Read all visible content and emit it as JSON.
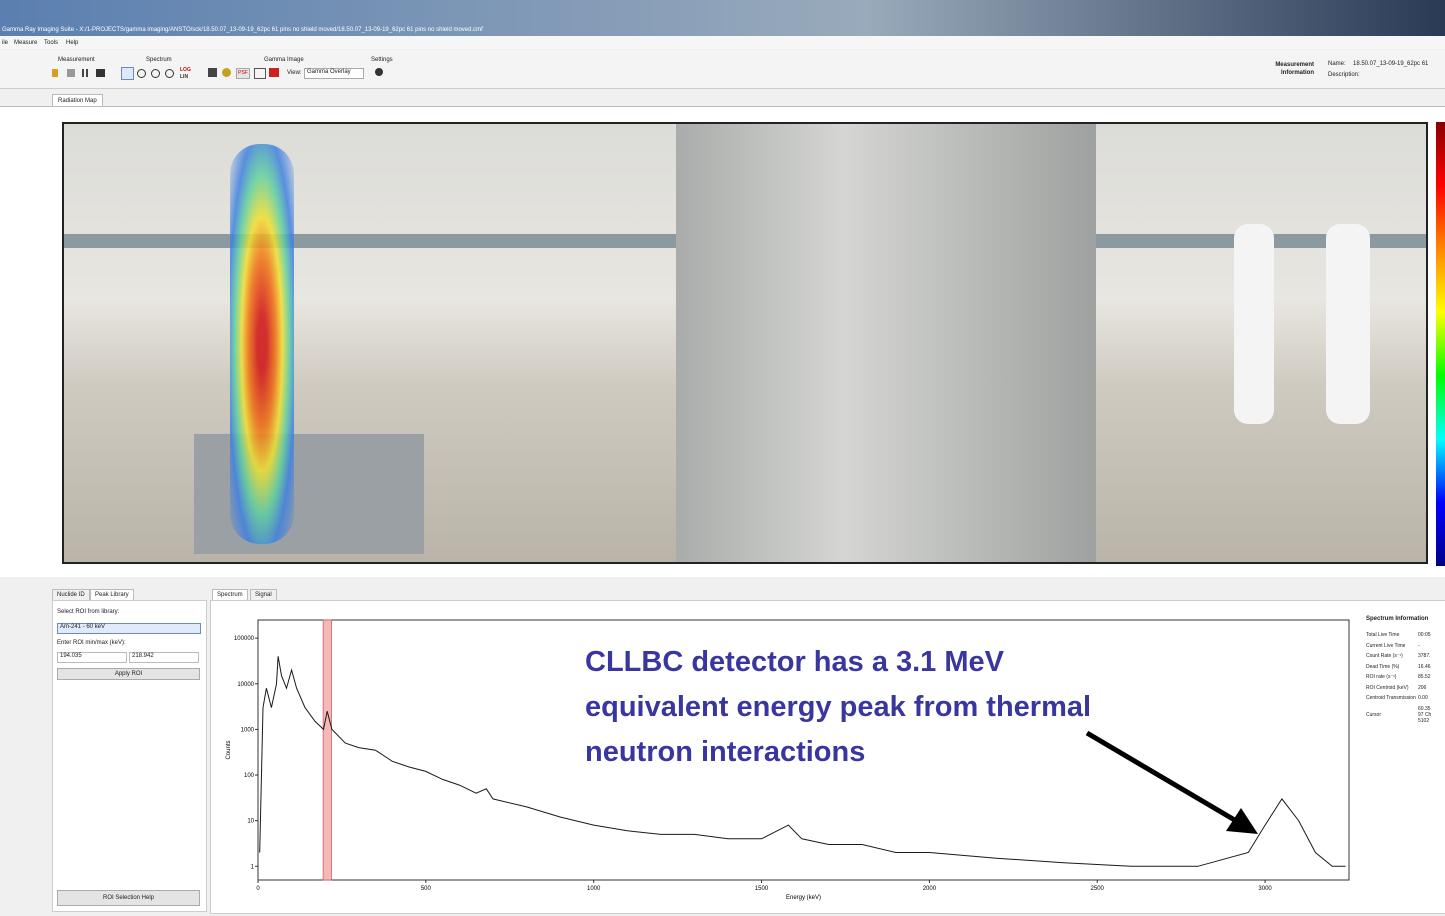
{
  "window": {
    "title": "Gamma Ray Imaging Suite - X:/1-PROJECTS/gamma imaging/ANSTO/sck/18.50.07_13-09-19_62pc 61 pins no shield moved/18.50.07_13-09-19_62pc 61 pins no shield moved.cmf"
  },
  "menu": [
    "ile",
    "Measure",
    "Tools",
    "Help"
  ],
  "toolbar": {
    "groups": [
      "Measurement",
      "Spectrum",
      "Gamma Image",
      "Settings"
    ],
    "log": "LOG",
    "lin": "LIN",
    "psf": "PSF",
    "view_label": "View:",
    "view_value": "Gamma Overlay"
  },
  "measurement_info": {
    "title": "Measurement Information",
    "name_label": "Name:",
    "name_value": "18.50.07_13-09-19_62pc 61",
    "description_label": "Description:"
  },
  "main_tab": "Radiation Map",
  "left_panel": {
    "tabs": [
      "Nuclide ID",
      "Peak Library"
    ],
    "select_label": "Select ROI from library:",
    "select_value": "Am-241 - 60 keV",
    "roi_label": "Enter ROI min/max (keV):",
    "roi_min": 194.035,
    "roi_max": 218.942,
    "apply": "Apply ROI",
    "help": "ROI Selection Help"
  },
  "spectrum_tabs": [
    "Spectrum",
    "Signal"
  ],
  "spectrum_chart": {
    "type": "line",
    "x_label": "Energy (keV)",
    "y_label": "Counts",
    "color": "#1a1a1a",
    "roi_color": "#f4b8b8",
    "log_y": true,
    "xlim": [
      0,
      3250
    ],
    "xticks": [
      0,
      500,
      1000,
      1500,
      2000,
      2500,
      3000
    ],
    "ylim": [
      0.5,
      250000
    ],
    "yticks": [
      1,
      10,
      100,
      1000,
      10000,
      100000
    ],
    "x": [
      5,
      15,
      25,
      40,
      55,
      60,
      70,
      85,
      100,
      115,
      140,
      170,
      195,
      206,
      220,
      260,
      300,
      350,
      400,
      450,
      500,
      550,
      600,
      650,
      680,
      700,
      800,
      900,
      1000,
      1100,
      1200,
      1300,
      1400,
      1500,
      1580,
      1620,
      1700,
      1800,
      1900,
      2000,
      2200,
      2400,
      2600,
      2800,
      2950,
      3000,
      3050,
      3100,
      3150,
      3200,
      3240
    ],
    "values": [
      2,
      3000,
      8000,
      3000,
      10000,
      40000,
      15000,
      8000,
      20000,
      8000,
      3000,
      1500,
      1000,
      2500,
      1000,
      500,
      400,
      350,
      200,
      150,
      120,
      80,
      60,
      40,
      50,
      30,
      20,
      12,
      8,
      6,
      5,
      5,
      4,
      4,
      8,
      4,
      3,
      3,
      2,
      2,
      1.5,
      1.2,
      1,
      1,
      2,
      8,
      30,
      10,
      2,
      1,
      1
    ]
  },
  "annotation": [
    "CLLBC detector has a 3.1 MeV",
    "equivalent energy peak from thermal",
    "neutron interactions"
  ],
  "spectrum_info": {
    "title": "Spectrum Information",
    "rows": [
      [
        "Total Live Time",
        "00:05"
      ],
      [
        "Current Live Time",
        "-"
      ],
      [
        "Count Rate (s⁻¹)",
        "3787."
      ],
      [
        "Dead Time (%)",
        "16.46"
      ],
      [
        "ROI rate (s⁻¹)",
        "85.52"
      ],
      [
        "ROI Centroid (keV)",
        "206"
      ],
      [
        "Centroid Transmission",
        "0.00"
      ]
    ],
    "cursor_label": "Cursor",
    "cursor_values": [
      "60.35",
      "97 Ch",
      "5102"
    ]
  }
}
